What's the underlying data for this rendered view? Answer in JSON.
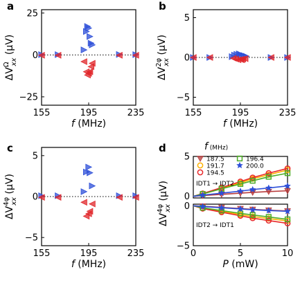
{
  "chart_data": [
    {
      "panel": "a",
      "type": "scatter",
      "xlabel": "f (MHz)",
      "ylabel": "ΔVΩxx (µV)",
      "xlim": [
        155,
        235
      ],
      "ylim": [
        -30,
        27
      ],
      "xticks": [
        "155",
        "195",
        "235"
      ],
      "yticks": [
        "25",
        "0",
        "−25"
      ],
      "zero_line": "dotted",
      "series": [
        {
          "color": "#2d4fd8",
          "marker": "right-triangle",
          "x": [
            155,
            169,
            191,
            193,
            194,
            195,
            196,
            197,
            198,
            221,
            235
          ],
          "y": [
            0.2,
            0.2,
            3,
            14,
            17,
            16,
            11,
            7,
            6,
            0.3,
            0.2
          ]
        },
        {
          "color": "#e0262a",
          "marker": "left-triangle",
          "x": [
            155,
            169,
            191,
            193,
            194,
            195,
            196,
            197,
            198,
            221,
            235
          ],
          "y": [
            -0.2,
            -0.2,
            -4,
            -10,
            -12,
            -11,
            -10,
            -7,
            -5,
            -0.2,
            -0.2
          ]
        }
      ]
    },
    {
      "panel": "b",
      "type": "scatter",
      "xlabel": "f (MHz)",
      "ylabel": "ΔV2φxx (µV)",
      "xlim": [
        155,
        235
      ],
      "ylim": [
        -6,
        6
      ],
      "xticks": [
        "155",
        "195",
        "235"
      ],
      "yticks": [
        "5",
        "0",
        "−5"
      ],
      "zero_line": "dotted",
      "series": [
        {
          "color": "#2d4fd8",
          "marker": "right-triangle",
          "x": [
            155,
            169,
            188,
            190,
            192,
            194,
            195,
            196,
            198,
            200,
            221,
            235
          ],
          "y": [
            0,
            0,
            0.1,
            0.3,
            0.4,
            0.45,
            0.4,
            0.3,
            0.25,
            0.15,
            0,
            0
          ]
        },
        {
          "color": "#e0262a",
          "marker": "left-triangle",
          "x": [
            155,
            169,
            189,
            191,
            193,
            195,
            196,
            197,
            199,
            221,
            235
          ],
          "y": [
            0,
            0,
            -0.1,
            -0.2,
            -0.3,
            -0.25,
            -0.3,
            -0.2,
            -0.15,
            0,
            0
          ]
        }
      ]
    },
    {
      "panel": "c",
      "type": "scatter",
      "xlabel": "f (MHz)",
      "ylabel": "ΔV4φxx (µV)",
      "xlim": [
        155,
        235
      ],
      "ylim": [
        -6,
        6
      ],
      "xticks": [
        "155",
        "195",
        "235"
      ],
      "yticks": [
        "5",
        "0",
        "−5"
      ],
      "zero_line": "dotted",
      "series": [
        {
          "color": "#2d4fd8",
          "marker": "right-triangle",
          "x": [
            155,
            169,
            191,
            193,
            195,
            196,
            198,
            221,
            235
          ],
          "y": [
            0.1,
            0.1,
            0.6,
            3.0,
            3.6,
            2.9,
            1.3,
            0.1,
            0.1
          ]
        },
        {
          "color": "#e0262a",
          "marker": "left-triangle",
          "x": [
            155,
            169,
            191,
            193,
            195,
            196,
            198,
            221,
            235
          ],
          "y": [
            -0.1,
            -0.1,
            -0.7,
            -2.4,
            -2.1,
            -1.8,
            -0.9,
            -0.1,
            -0.1
          ]
        }
      ]
    },
    {
      "panel": "d",
      "type": "line",
      "xlabel": "P (mW)",
      "ylabel": "ΔV4φxx (µV)",
      "xlim": [
        0,
        10
      ],
      "xticks": [
        "0",
        "5",
        "10"
      ],
      "yticks_top": [
        "5",
        "0"
      ],
      "yticks_bottom": [
        "0",
        "−5"
      ],
      "ylim_top": [
        -0.2,
        5
      ],
      "ylim_bottom": [
        -5,
        0.2
      ],
      "legend_title": "f (MHz)",
      "label_top": "IDT1 → IDT2",
      "label_bottom": "IDT2 → IDT1",
      "x": [
        1,
        3,
        5,
        6.3,
        8,
        10
      ],
      "series": [
        {
          "name": "187.5",
          "color": "#b83a3a",
          "marker": "down-triangle",
          "top": [
            0.1,
            0.25,
            0.4,
            0.5,
            0.6,
            0.7
          ],
          "bottom": [
            -0.05,
            -0.2,
            -0.35,
            -0.45,
            -0.55,
            -0.65
          ]
        },
        {
          "name": "191.7",
          "color": "#ffb200",
          "marker": "circle",
          "top": [
            0.3,
            1.0,
            1.7,
            2.2,
            2.7,
            3.3
          ],
          "bottom": [
            -0.3,
            -0.7,
            -1.1,
            -1.35,
            -1.6,
            -1.9
          ]
        },
        {
          "name": "194.5",
          "color": "#e8282a",
          "marker": "circle",
          "top": [
            0.35,
            1.1,
            1.85,
            2.35,
            2.9,
            3.5
          ],
          "bottom": [
            -0.35,
            -0.8,
            -1.25,
            -1.55,
            -1.85,
            -2.2
          ]
        },
        {
          "name": "196.4",
          "color": "#4dac26",
          "marker": "square",
          "top": [
            0.3,
            0.95,
            1.55,
            1.95,
            2.45,
            2.9
          ],
          "bottom": [
            -0.25,
            -0.6,
            -0.95,
            -1.15,
            -1.4,
            -1.7
          ]
        },
        {
          "name": "200.0",
          "color": "#2d4fd8",
          "marker": "star",
          "top": [
            0.15,
            0.4,
            0.65,
            0.85,
            1.05,
            1.3
          ],
          "bottom": [
            -0.1,
            -0.25,
            -0.4,
            -0.5,
            -0.6,
            -0.7
          ]
        }
      ]
    }
  ],
  "panel_letters": [
    "a",
    "b",
    "c",
    "d"
  ]
}
